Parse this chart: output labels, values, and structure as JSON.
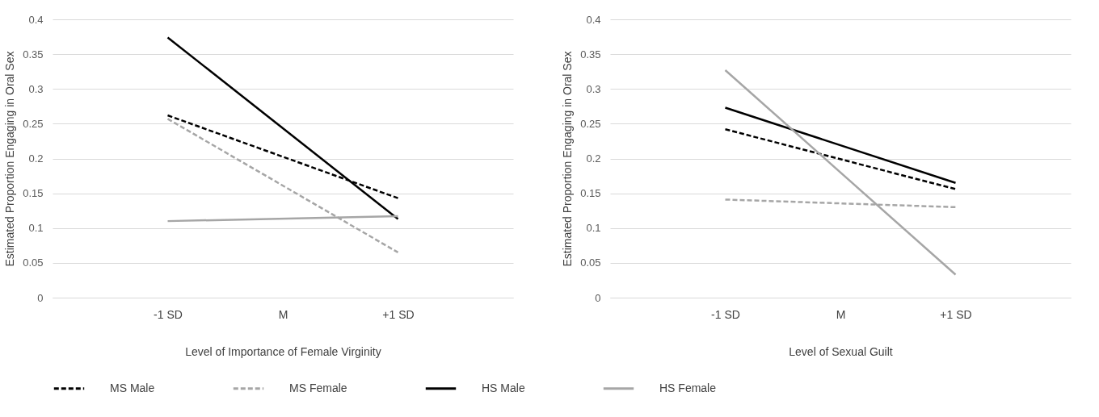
{
  "chart_data": [
    {
      "type": "line",
      "xlabel": "Level of Importance of Female Virginity",
      "ylabel": "Estimated Proportion Engaging in Oral Sex",
      "categories": [
        "-1 SD",
        "M",
        "+1 SD"
      ],
      "ylim": [
        0,
        0.4
      ],
      "yticks": [
        0,
        0.05,
        0.1,
        0.15,
        0.2,
        0.25,
        0.3,
        0.35,
        0.4
      ],
      "grid": "y",
      "legend": "bottom",
      "series": [
        {
          "name": "MS Male",
          "color": "#000000",
          "line_style": "dashed",
          "values": [
            0.262,
            null,
            0.143
          ]
        },
        {
          "name": "MS Female",
          "color": "#a6a6a6",
          "line_style": "dashed",
          "values": [
            0.257,
            null,
            0.065
          ]
        },
        {
          "name": "HS Male",
          "color": "#000000",
          "line_style": "solid",
          "values": [
            0.374,
            null,
            0.113
          ]
        },
        {
          "name": "HS Female",
          "color": "#a6a6a6",
          "line_style": "solid",
          "values": [
            0.11,
            null,
            0.117
          ]
        }
      ]
    },
    {
      "type": "line",
      "xlabel": "Level of Sexual Guilt",
      "ylabel": "Estimated Proportion Engaging in Oral Sex",
      "categories": [
        "-1 SD",
        "M",
        "+1 SD"
      ],
      "ylim": [
        0,
        0.4
      ],
      "yticks": [
        0,
        0.05,
        0.1,
        0.15,
        0.2,
        0.25,
        0.3,
        0.35,
        0.4
      ],
      "grid": "y",
      "legend": "bottom",
      "series": [
        {
          "name": "MS Male",
          "color": "#000000",
          "line_style": "dashed",
          "values": [
            0.242,
            null,
            0.156
          ]
        },
        {
          "name": "MS Female",
          "color": "#a6a6a6",
          "line_style": "dashed",
          "values": [
            0.141,
            null,
            0.13
          ]
        },
        {
          "name": "HS Male",
          "color": "#000000",
          "line_style": "solid",
          "values": [
            0.273,
            null,
            0.165
          ]
        },
        {
          "name": "HS Female",
          "color": "#a6a6a6",
          "line_style": "solid",
          "values": [
            0.327,
            null,
            0.033
          ]
        }
      ]
    }
  ]
}
